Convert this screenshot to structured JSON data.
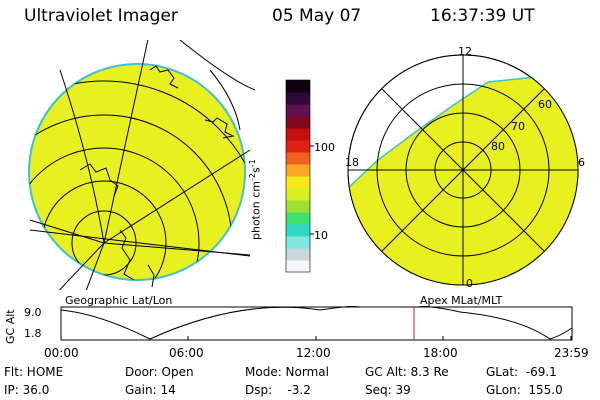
{
  "header": {
    "title": "Ultraviolet Imager",
    "date": "05 May 07",
    "time": "16:37:39 UT"
  },
  "colorbar": {
    "label_main": "photon cm",
    "label_exp1": "-2",
    "label_mid": "s",
    "label_exp2": "-1",
    "ticks": [
      {
        "value": "100"
      },
      {
        "value": "10"
      }
    ],
    "colors": [
      "#f4f8f8",
      "#c8d8dc",
      "#80e8e0",
      "#30d8c8",
      "#40e070",
      "#a0e030",
      "#d8f020",
      "#f8e818",
      "#f8a820",
      "#f06020",
      "#e02010",
      "#c01010",
      "#800820",
      "#601050",
      "#300838",
      "#100010"
    ]
  },
  "left_map": {
    "label": "Geographic Lat/Lon",
    "fill_color": "#e8f020",
    "edge_color": "#40c0d0"
  },
  "right_map": {
    "label": "Apex MLat/MLT",
    "lat_labels": [
      "60",
      "70",
      "80"
    ],
    "mlt_labels": {
      "top": "12",
      "left": "18",
      "right": "6",
      "bottom": "0"
    }
  },
  "timeline": {
    "axis_label": "GC Alt",
    "y_ticks": [
      "9.0",
      "1.8"
    ],
    "x_ticks": [
      "00:00",
      "06:00",
      "12:00",
      "18:00",
      "23:59"
    ],
    "marker_color": "#c02020"
  },
  "info": {
    "flt": "Flt: HOME",
    "ip": "IP: 36.0",
    "door": "Door: Open",
    "gain": "Gain: 14",
    "mode": "Mode: Normal",
    "dsp_label": "Dsp:",
    "dsp_value": "-3.2",
    "gcalt": "GC Alt: 8.3 Re",
    "seq": "Seq: 39",
    "glat_label": "GLat:",
    "glat_value": "-69.1",
    "glon_label": "GLon:",
    "glon_value": "155.0"
  }
}
